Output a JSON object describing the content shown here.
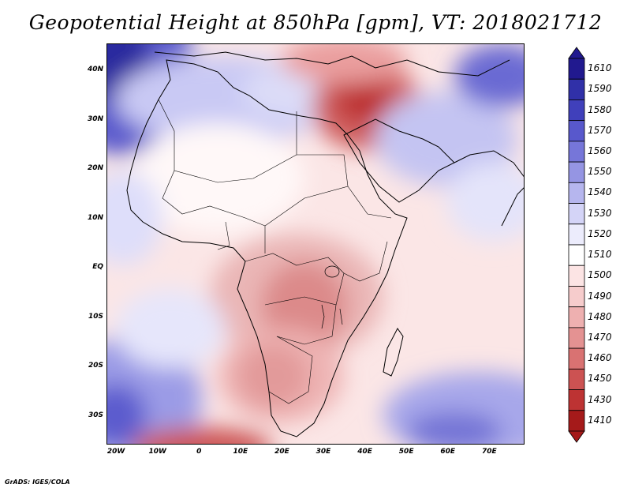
{
  "title": "Geopotential Height at 850hPa [gpm], VT: 2018021712",
  "credit": "GrADS: IGES/COLA",
  "map": {
    "region": "Africa",
    "lat_ticks": [
      "40N",
      "30N",
      "20N",
      "10N",
      "EQ",
      "10S",
      "20S",
      "30S"
    ],
    "lat_values": [
      40,
      30,
      20,
      10,
      0,
      -10,
      -20,
      -30
    ],
    "lon_ticks": [
      "20W",
      "10W",
      "0",
      "10E",
      "20E",
      "30E",
      "40E",
      "50E",
      "60E",
      "70E"
    ],
    "lon_values": [
      -20,
      -10,
      0,
      10,
      20,
      30,
      40,
      50,
      60,
      70
    ],
    "lat_range": [
      -35.8,
      45.5
    ],
    "lon_range": [
      -22.3,
      78.5
    ]
  },
  "colorbar": {
    "levels": [
      "1610",
      "1590",
      "1580",
      "1570",
      "1560",
      "1550",
      "1540",
      "1530",
      "1520",
      "1510",
      "1500",
      "1490",
      "1480",
      "1470",
      "1460",
      "1450",
      "1430",
      "1410"
    ],
    "colors": [
      "#21198f",
      "#3030a8",
      "#4040bb",
      "#5858cc",
      "#7676d9",
      "#9595e3",
      "#b6b6ee",
      "#d4d4f7",
      "#ececfc",
      "#ffffff",
      "#fce4e4",
      "#f6cccc",
      "#eeb0b0",
      "#e49292",
      "#d97272",
      "#cc5252",
      "#bd3333",
      "#a51a1a"
    ]
  }
}
